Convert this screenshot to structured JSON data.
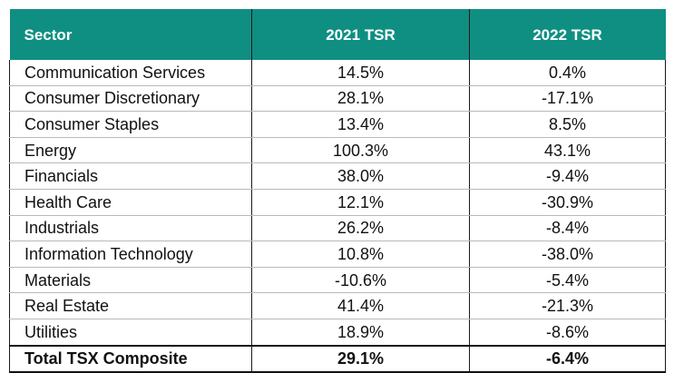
{
  "chart_data": {
    "type": "table",
    "columns": [
      "Sector",
      "2021 TSR",
      "2022 TSR"
    ],
    "rows": [
      {
        "sector": "Communication Services",
        "tsr_2021": "14.5%",
        "tsr_2022": "0.4%"
      },
      {
        "sector": "Consumer Discretionary",
        "tsr_2021": "28.1%",
        "tsr_2022": "-17.1%"
      },
      {
        "sector": "Consumer Staples",
        "tsr_2021": "13.4%",
        "tsr_2022": "8.5%"
      },
      {
        "sector": "Energy",
        "tsr_2021": "100.3%",
        "tsr_2022": "43.1%"
      },
      {
        "sector": "Financials",
        "tsr_2021": "38.0%",
        "tsr_2022": "-9.4%"
      },
      {
        "sector": "Health Care",
        "tsr_2021": "12.1%",
        "tsr_2022": "-30.9%"
      },
      {
        "sector": "Industrials",
        "tsr_2021": "26.2%",
        "tsr_2022": "-8.4%"
      },
      {
        "sector": "Information Technology",
        "tsr_2021": "10.8%",
        "tsr_2022": "-38.0%"
      },
      {
        "sector": "Materials",
        "tsr_2021": "-10.6%",
        "tsr_2022": "-5.4%"
      },
      {
        "sector": "Real Estate",
        "tsr_2021": "41.4%",
        "tsr_2022": "-21.3%"
      },
      {
        "sector": "Utilities",
        "tsr_2021": "18.9%",
        "tsr_2022": "-8.6%"
      }
    ],
    "total": {
      "sector": "Total TSX Composite",
      "tsr_2021": "29.1%",
      "tsr_2022": "-6.4%"
    },
    "header_color": "#0f8f82"
  }
}
